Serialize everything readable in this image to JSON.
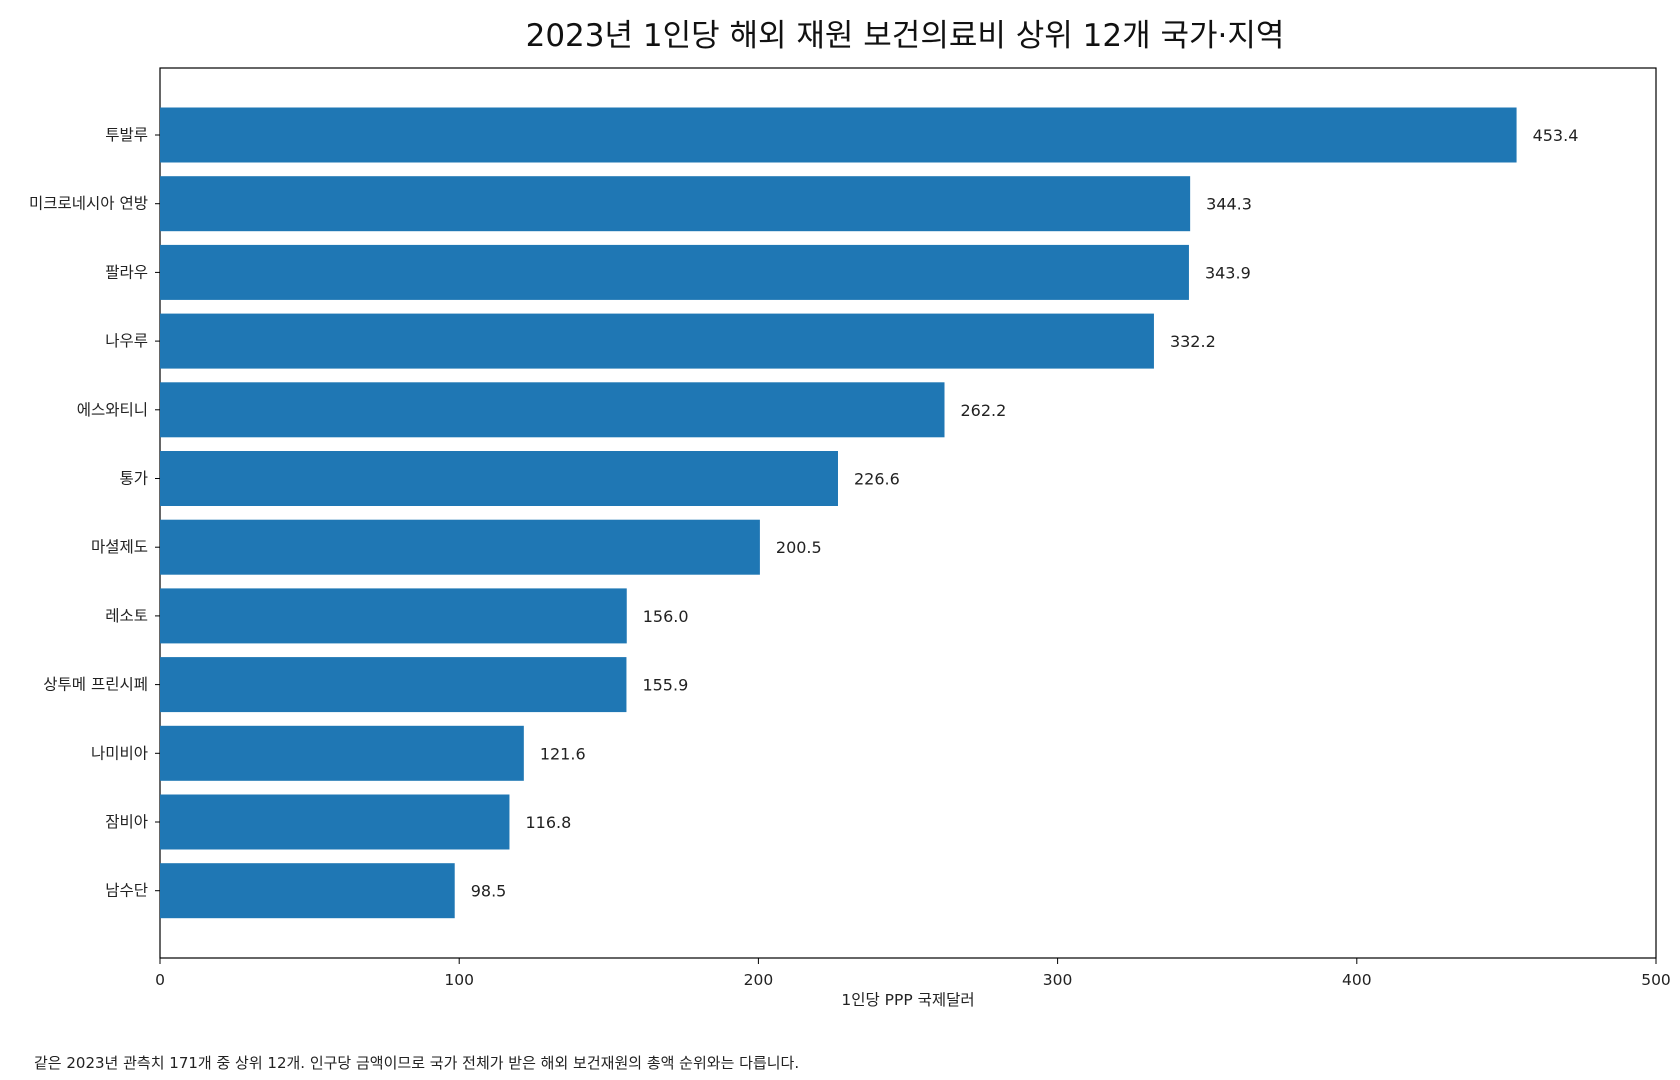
{
  "chart_data": {
    "type": "bar",
    "orientation": "horizontal",
    "title": "2023년 1인당 해외 재원 보건의료비 상위 12개 국가·지역",
    "xlabel": "1인당 PPP 국제달러",
    "ylabel": "",
    "xlim": [
      0,
      500
    ],
    "xticks": [
      0,
      100,
      200,
      300,
      400,
      500
    ],
    "grid": false,
    "bar_color": "#1f77b4",
    "categories": [
      "투발루",
      "미크로네시아 연방",
      "팔라우",
      "나우루",
      "에스와티니",
      "통가",
      "마셜제도",
      "레소토",
      "상투메 프린시페",
      "나미비아",
      "잠비아",
      "남수단"
    ],
    "values": [
      453.4,
      344.3,
      343.9,
      332.2,
      262.2,
      226.6,
      200.5,
      156.0,
      155.9,
      121.6,
      116.8,
      98.5
    ],
    "value_labels": [
      "453.4",
      "344.3",
      "343.9",
      "332.2",
      "262.2",
      "226.6",
      "200.5",
      "156.0",
      "155.9",
      "121.6",
      "116.8",
      "98.5"
    ]
  },
  "footnote": "같은 2023년 관측치 171개 중 상위 12개. 인구당 금액이므로 국가 전체가 받은 해외 보건재원의 총액 순위와는 다릅니다."
}
